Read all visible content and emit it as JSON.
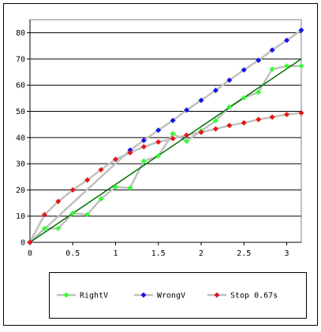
{
  "chart_data": {
    "type": "line",
    "title": "",
    "xlabel": "",
    "ylabel": "",
    "xlim": [
      0,
      3.17
    ],
    "ylim": [
      0,
      85
    ],
    "x_ticks": [
      0,
      0.5,
      1,
      1.5,
      2,
      2.5,
      3
    ],
    "x_tick_labels": [
      "0",
      "0.5",
      "1",
      "1.5",
      "2",
      "2.5",
      "3"
    ],
    "y_ticks": [
      0,
      10,
      20,
      30,
      40,
      50,
      60,
      70,
      80
    ],
    "y_tick_labels": [
      "0",
      "10",
      "20",
      "30",
      "40",
      "50",
      "60",
      "70",
      "80"
    ],
    "grid": "horizontal",
    "legend_position": "bottom",
    "colors": {
      "connector": "#c0c0c0",
      "trend": "#007000",
      "plot_border": "#808080",
      "gridline": "#000000"
    },
    "trend_line": {
      "x": [
        0,
        3.17
      ],
      "y": [
        0,
        70
      ]
    },
    "series": [
      {
        "name": "RightV",
        "color": "#33ff33",
        "x": [
          0,
          0.17,
          0.33,
          0.5,
          0.67,
          0.83,
          1.0,
          1.17,
          1.33,
          1.5,
          1.67,
          1.83,
          2.0,
          2.17,
          2.33,
          2.5,
          2.67,
          2.83,
          3.0,
          3.17
        ],
        "y": [
          0,
          5.3,
          5.3,
          11.1,
          10.6,
          16.6,
          21.1,
          20.8,
          31.0,
          33.0,
          41.5,
          38.6,
          42.5,
          46.4,
          51.7,
          55.2,
          57.3,
          66.1,
          67.3,
          67.3
        ]
      },
      {
        "name": "WrongV",
        "color": "#1414e6",
        "x": [
          0,
          1.17,
          1.33,
          1.5,
          1.67,
          1.83,
          2.0,
          2.17,
          2.33,
          2.5,
          2.67,
          2.83,
          3.0,
          3.17
        ],
        "y": [
          0,
          35.2,
          38.9,
          42.8,
          46.5,
          50.5,
          54.2,
          58.0,
          61.9,
          65.8,
          69.5,
          73.4,
          77.1,
          81.0
        ]
      },
      {
        "name": "Stop 0.67s",
        "color": "#e61414",
        "x": [
          0,
          0.17,
          0.33,
          0.5,
          0.67,
          0.83,
          1.0,
          1.17,
          1.33,
          1.5,
          1.67,
          1.83,
          2.0,
          2.17,
          2.33,
          2.5,
          2.67,
          2.83,
          3.0,
          3.17
        ],
        "y": [
          0,
          10.5,
          15.6,
          20.0,
          23.8,
          27.7,
          31.7,
          34.2,
          36.5,
          38.3,
          39.6,
          40.9,
          42.0,
          43.3,
          44.6,
          45.6,
          46.9,
          47.8,
          48.8,
          49.4
        ]
      }
    ]
  }
}
